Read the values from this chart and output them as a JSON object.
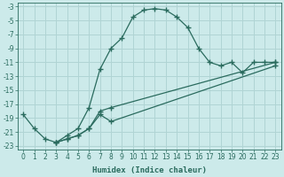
{
  "xlabel": "Humidex (Indice chaleur)",
  "bg_color": "#cceaea",
  "grid_color": "#b0d4d4",
  "line_color": "#2a6b5e",
  "xlim": [
    -0.5,
    23.5
  ],
  "ylim": [
    -23.5,
    -2.5
  ],
  "xticks": [
    0,
    1,
    2,
    3,
    4,
    5,
    6,
    7,
    8,
    9,
    10,
    11,
    12,
    13,
    14,
    15,
    16,
    17,
    18,
    19,
    20,
    21,
    22,
    23
  ],
  "yticks": [
    -3,
    -5,
    -7,
    -9,
    -11,
    -13,
    -15,
    -17,
    -19,
    -21,
    -23
  ],
  "series": [
    {
      "x": [
        0,
        1,
        2,
        3,
        4,
        5,
        6,
        7,
        8,
        9,
        10,
        11,
        12,
        13,
        14,
        15,
        16,
        17,
        18,
        19,
        20,
        21,
        22,
        23
      ],
      "y": [
        -18.5,
        -20.5,
        -22,
        -22.5,
        -21.5,
        -20.5,
        -17.5,
        -12.0,
        -9.0,
        -7.5,
        -4.5,
        -3.5,
        -3.3,
        -3.5,
        -4.5,
        -6.0,
        -9.0,
        -11.0,
        -11.5,
        -11.0,
        -12.5,
        -11.0,
        -11.0,
        -11.0
      ]
    },
    {
      "x": [
        3,
        4,
        5,
        6,
        7,
        8,
        23
      ],
      "y": [
        -22.5,
        -22.0,
        -21.5,
        -20.5,
        -18.5,
        -19.5,
        -11.5
      ]
    },
    {
      "x": [
        3,
        4,
        5,
        6,
        7,
        8,
        23
      ],
      "y": [
        -22.5,
        -22.0,
        -21.5,
        -20.5,
        -18.0,
        -17.5,
        -11.0
      ]
    }
  ]
}
